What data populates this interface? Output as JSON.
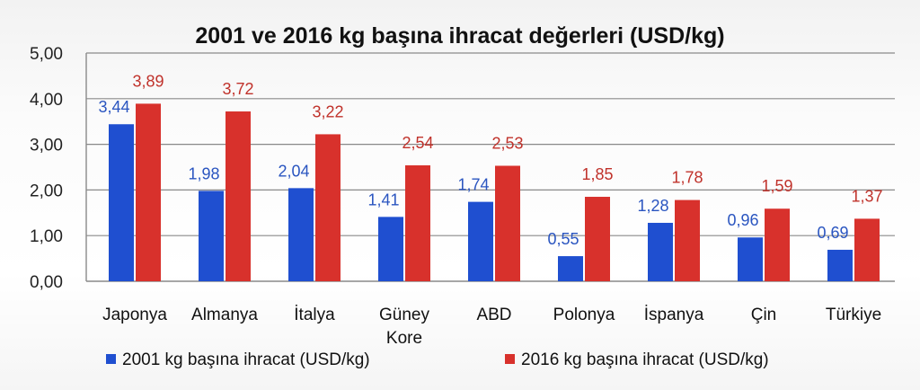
{
  "chart_data": {
    "type": "bar",
    "title": "2001 ve 2016 kg başına ihracat değerleri (USD/kg)",
    "categories": [
      [
        "Japonya"
      ],
      [
        "Almanya"
      ],
      [
        "İtalya"
      ],
      [
        "Güney",
        "Kore"
      ],
      [
        "ABD"
      ],
      [
        "Polonya"
      ],
      [
        "İspanya"
      ],
      [
        "Çin"
      ],
      [
        "Türkiye"
      ]
    ],
    "series": [
      {
        "name": "2001 kg başına ihracat (USD/kg)",
        "color": "#1f4fd0",
        "label_color": "#2a55c0",
        "values": [
          3.44,
          1.98,
          2.04,
          1.41,
          1.74,
          0.55,
          1.28,
          0.96,
          0.69
        ],
        "labels": [
          "3,44",
          "1,98",
          "2,04",
          "1,41",
          "1,74",
          "0,55",
          "1,28",
          "0,96",
          "0,69"
        ]
      },
      {
        "name": "2016 kg başına ihracat (USD/kg)",
        "color": "#d8312c",
        "label_color": "#c0322b",
        "values": [
          3.89,
          3.72,
          3.22,
          2.54,
          2.53,
          1.85,
          1.78,
          1.59,
          1.37
        ],
        "labels": [
          "3,89",
          "3,72",
          "3,22",
          "2,54",
          "2,53",
          "1,85",
          "1,78",
          "1,59",
          "1,37"
        ]
      }
    ],
    "yticks": [
      {
        "value": 0,
        "label": "0,00"
      },
      {
        "value": 1,
        "label": "1,00"
      },
      {
        "value": 2,
        "label": "2,00"
      },
      {
        "value": 3,
        "label": "3,00"
      },
      {
        "value": 4,
        "label": "4,00"
      },
      {
        "value": 5,
        "label": "5,00"
      }
    ],
    "ylim": [
      0,
      5
    ],
    "grid": true,
    "legend_position": "bottom"
  }
}
